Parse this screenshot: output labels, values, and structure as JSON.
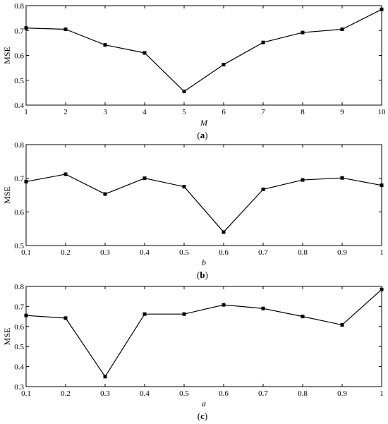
{
  "chart_data": [
    {
      "type": "line",
      "x": [
        1,
        2,
        3,
        4,
        5,
        6,
        7,
        8,
        9,
        10
      ],
      "series": [
        {
          "values": [
            0.71,
            0.705,
            0.642,
            0.61,
            0.455,
            0.563,
            0.652,
            0.692,
            0.705,
            0.785
          ]
        }
      ],
      "xlabel": "M",
      "ylabel": "MSE",
      "xlim": [
        1,
        10
      ],
      "ylim": [
        0.4,
        0.8
      ],
      "xticks": [
        "1",
        "2",
        "3",
        "4",
        "5",
        "6",
        "7",
        "8",
        "9",
        "10"
      ],
      "yticks": [
        "0.4",
        "0.5",
        "0.6",
        "0.7",
        "0.8"
      ],
      "caption_letter": "a",
      "grid": false,
      "marker": "square",
      "color": "#000000"
    },
    {
      "type": "line",
      "x": [
        0.1,
        0.2,
        0.3,
        0.4,
        0.5,
        0.6,
        0.7,
        0.8,
        0.9,
        1.0
      ],
      "series": [
        {
          "values": [
            0.69,
            0.712,
            0.653,
            0.7,
            0.675,
            0.54,
            0.667,
            0.695,
            0.701,
            0.679
          ]
        }
      ],
      "xlabel": "b",
      "ylabel": "MSE",
      "xlim": [
        0.1,
        1.0
      ],
      "ylim": [
        0.5,
        0.8
      ],
      "xticks": [
        "0.1",
        "0.2",
        "0.3",
        "0.4",
        "0.5",
        "0.6",
        "0.7",
        "0.8",
        "0.9",
        "1"
      ],
      "yticks": [
        "0.5",
        "0.6",
        "0.7",
        "0.8"
      ],
      "caption_letter": "b",
      "grid": false,
      "marker": "square",
      "color": "#000000"
    },
    {
      "type": "line",
      "x": [
        0.1,
        0.2,
        0.3,
        0.4,
        0.5,
        0.6,
        0.7,
        0.8,
        0.9,
        1.0
      ],
      "series": [
        {
          "values": [
            0.655,
            0.642,
            0.35,
            0.662,
            0.662,
            0.708,
            0.69,
            0.65,
            0.608,
            0.785
          ]
        }
      ],
      "xlabel": "a",
      "ylabel": "MSE",
      "xlim": [
        0.1,
        1.0
      ],
      "ylim": [
        0.3,
        0.8
      ],
      "xticks": [
        "0.1",
        "0.2",
        "0.3",
        "0.4",
        "0.5",
        "0.6",
        "0.7",
        "0.8",
        "0.9",
        "1"
      ],
      "yticks": [
        "0.3",
        "0.4",
        "0.5",
        "0.6",
        "0.7",
        "0.8"
      ],
      "caption_letter": "c",
      "grid": false,
      "marker": "square",
      "color": "#000000"
    }
  ]
}
